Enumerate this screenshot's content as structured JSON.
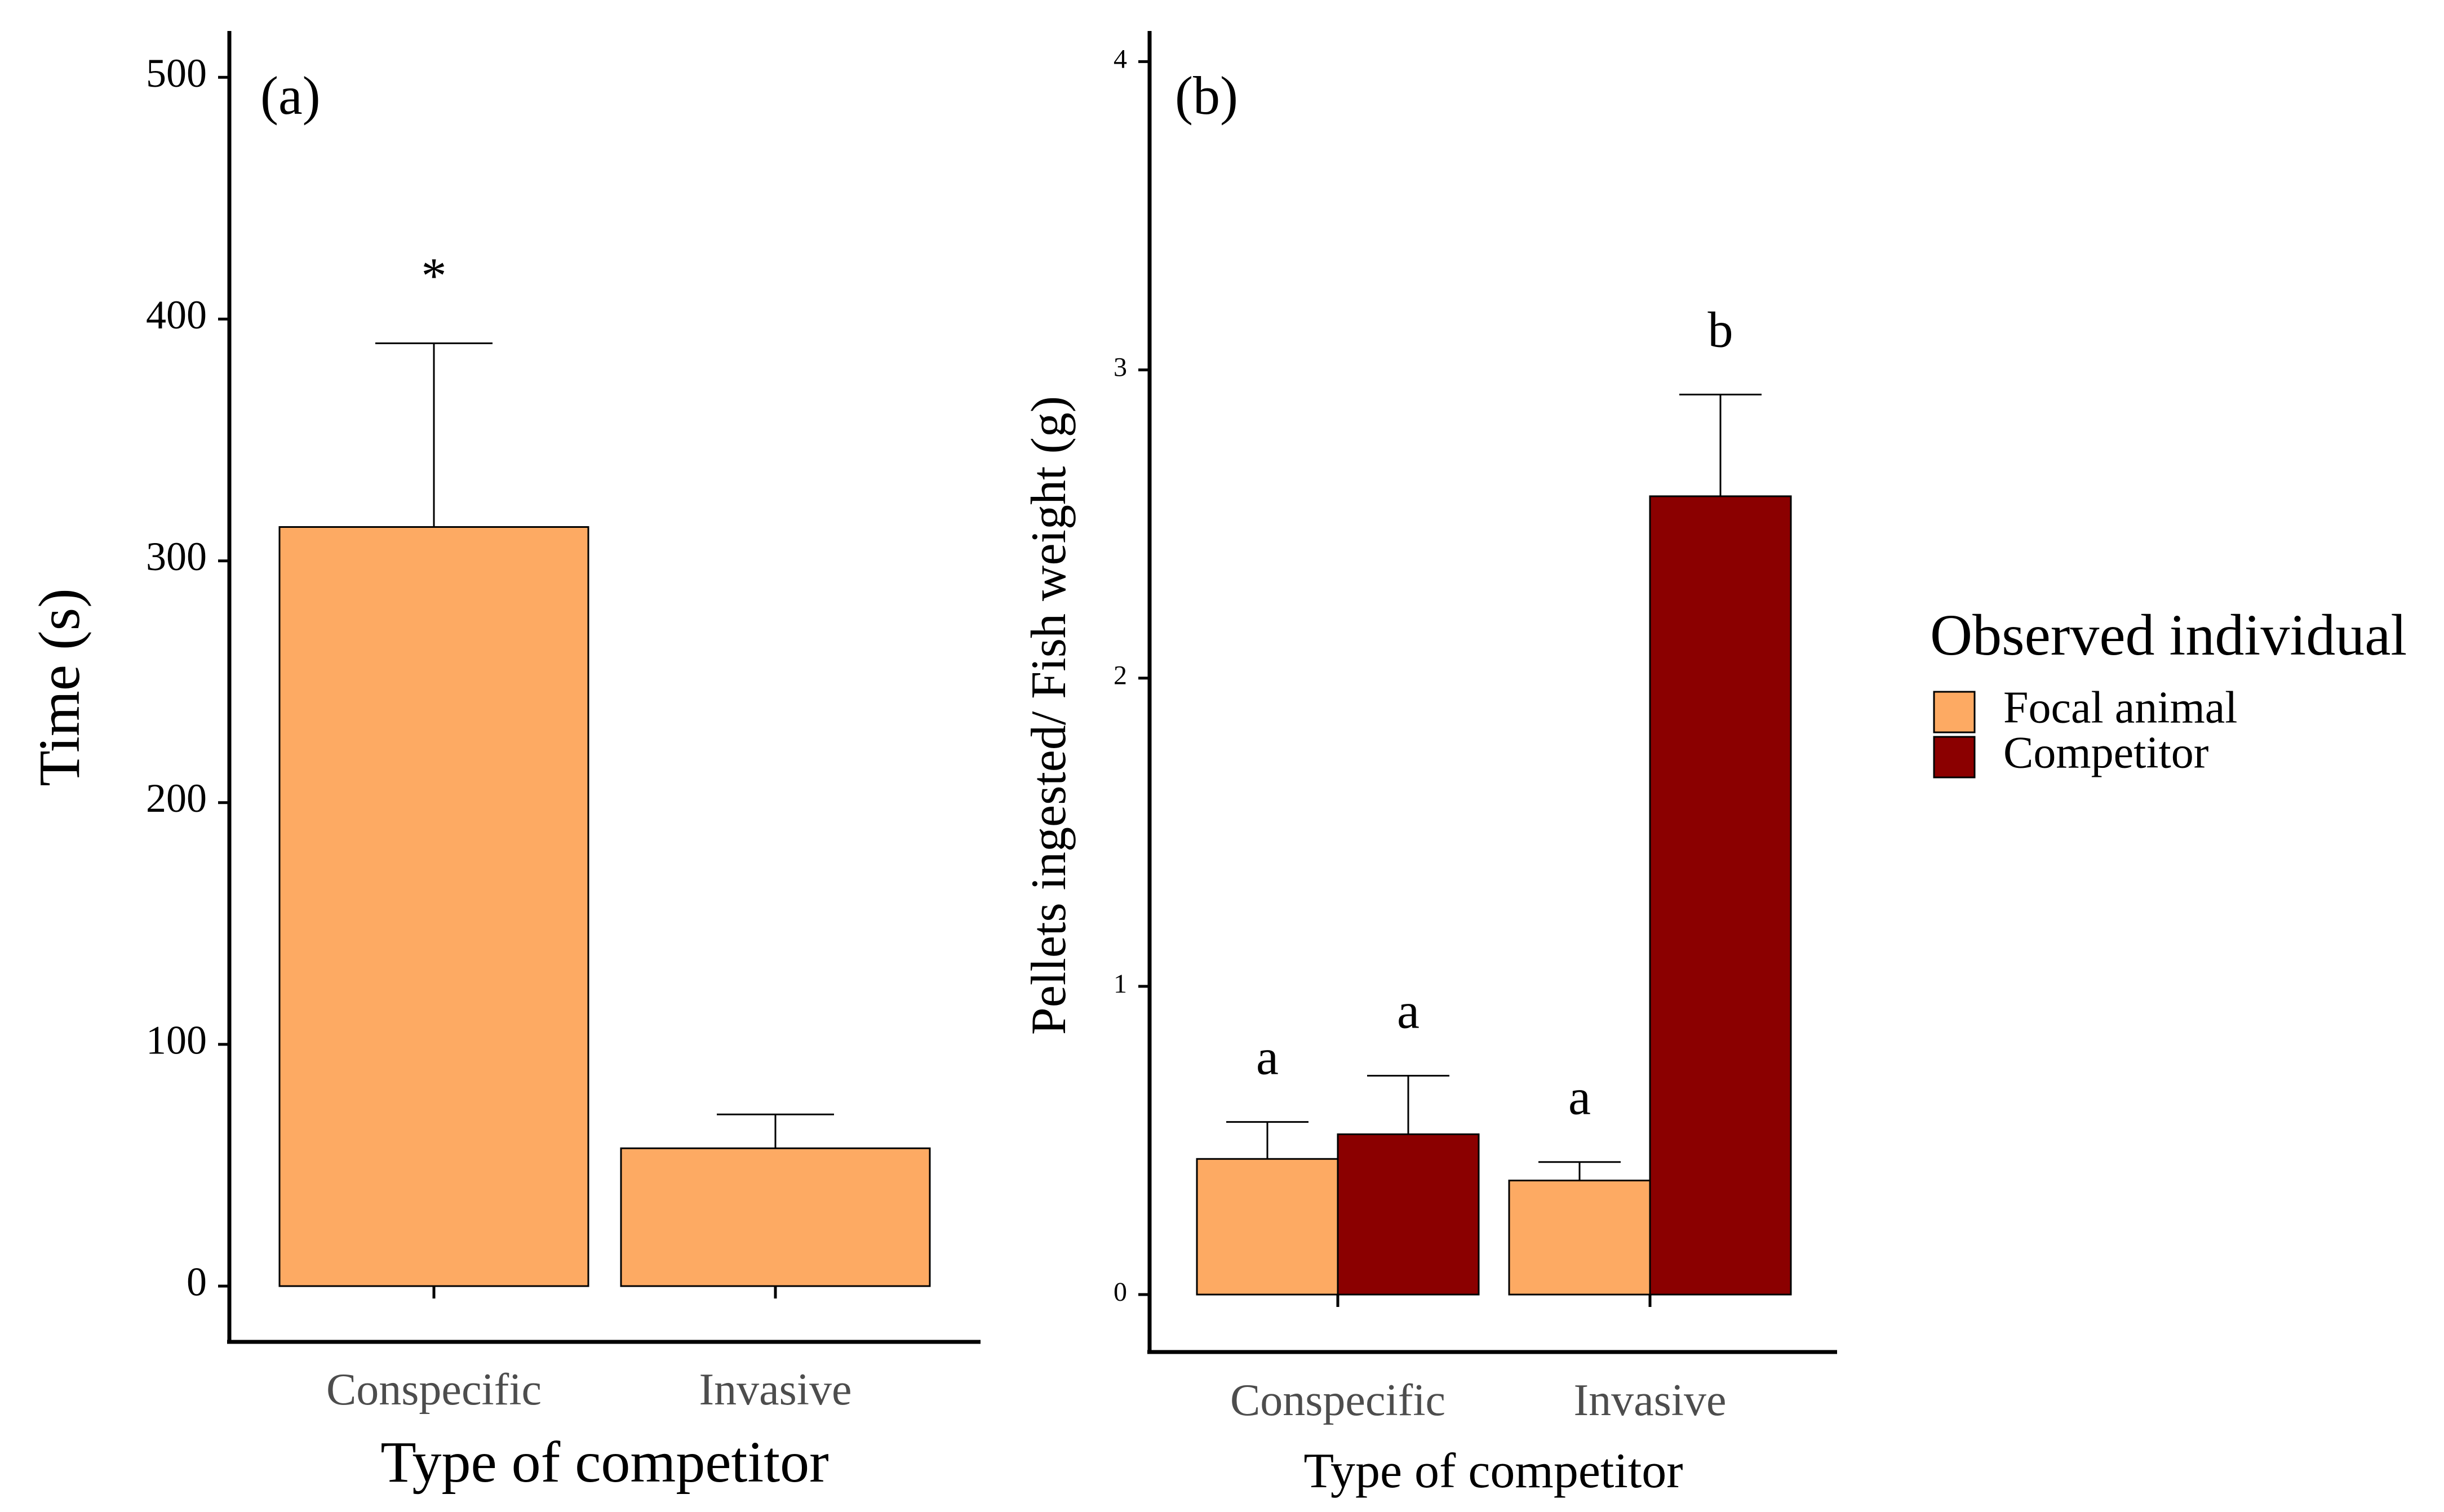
{
  "chart_data": [
    {
      "type": "bar",
      "panel_label": "(a)",
      "categories": [
        "Conspecific",
        "Invasive"
      ],
      "series": [
        {
          "name": "Focal animal",
          "values": [
            314,
            57
          ],
          "error_upper": [
            390,
            71
          ]
        }
      ],
      "annotations": [
        "*",
        ""
      ],
      "xlabel": "Type of competitor",
      "ylabel": "Time (s)",
      "ylim": [
        0,
        525
      ],
      "yticks": [
        0,
        100,
        200,
        300,
        400,
        500
      ],
      "grid": false
    },
    {
      "type": "bar",
      "panel_label": "(b)",
      "categories": [
        "Conspecific",
        "Invasive"
      ],
      "series": [
        {
          "name": "Focal animal",
          "values": [
            0.44,
            0.37
          ],
          "error_upper": [
            0.56,
            0.43
          ],
          "annotations": [
            "a",
            "a"
          ]
        },
        {
          "name": "Competitor",
          "values": [
            0.52,
            2.59
          ],
          "error_upper": [
            0.71,
            2.92
          ],
          "annotations": [
            "a",
            "b"
          ]
        }
      ],
      "xlabel": "Type of competitor",
      "ylabel": "Pellets ingested/ Fish weight (g)",
      "ylim": [
        0,
        4.2
      ],
      "yticks": [
        0,
        1,
        2,
        3,
        4
      ],
      "grid": false
    }
  ],
  "legend": {
    "title": "Observed individual",
    "items": [
      {
        "label": "Focal animal",
        "color": "#FDAA63"
      },
      {
        "label": "Competitor",
        "color": "#8B0000"
      }
    ]
  }
}
